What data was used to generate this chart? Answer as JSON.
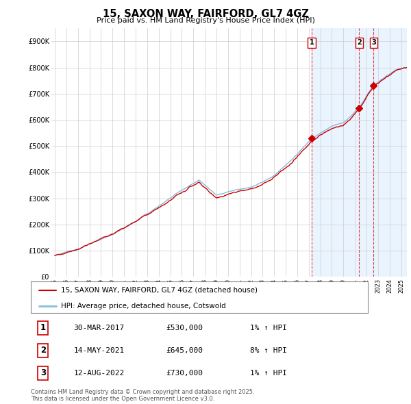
{
  "title": "15, SAXON WAY, FAIRFORD, GL7 4GZ",
  "subtitle": "Price paid vs. HM Land Registry's House Price Index (HPI)",
  "background_color": "#ffffff",
  "plot_bg_color": "#ffffff",
  "grid_color": "#cccccc",
  "line_color": "#cc0000",
  "hpi_line_color": "#88bbdd",
  "shade_color": "#ddeeff",
  "dashed_color": "#dd2222",
  "ylim": [
    0,
    950000
  ],
  "yticks": [
    0,
    100000,
    200000,
    300000,
    400000,
    500000,
    600000,
    700000,
    800000,
    900000
  ],
  "ytick_labels": [
    "£0",
    "£100K",
    "£200K",
    "£300K",
    "£400K",
    "£500K",
    "£600K",
    "£700K",
    "£800K",
    "£900K"
  ],
  "legend_line1": "15, SAXON WAY, FAIRFORD, GL7 4GZ (detached house)",
  "legend_line2": "HPI: Average price, detached house, Cotswold",
  "transactions": [
    {
      "num": "1",
      "date": "30-MAR-2017",
      "price": "£530,000",
      "hpi": "1% ↑ HPI",
      "year": 2017.25,
      "price_val": 530000
    },
    {
      "num": "2",
      "date": "14-MAY-2021",
      "price": "£645,000",
      "hpi": "8% ↑ HPI",
      "year": 2021.37,
      "price_val": 645000
    },
    {
      "num": "3",
      "date": "12-AUG-2022",
      "price": "£730,000",
      "hpi": "1% ↑ HPI",
      "year": 2022.62,
      "price_val": 730000
    }
  ],
  "footnote": "Contains HM Land Registry data © Crown copyright and database right 2025.\nThis data is licensed under the Open Government Licence v3.0.",
  "xlim": [
    1994.7,
    2025.5
  ],
  "shade_start": 2017.25
}
